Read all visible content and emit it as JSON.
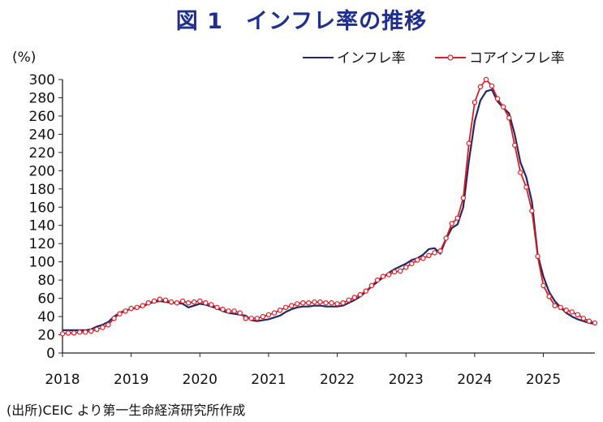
{
  "chart_data": {
    "type": "line",
    "title": "図 1　インフレ率の推移",
    "ylabel": "(%)",
    "source": "(出所)CEIC より第一生命経済研究所作成",
    "ylim": [
      0,
      300
    ],
    "xlim": [
      2018.0,
      2025.75
    ],
    "yticks": [
      0,
      20,
      40,
      60,
      80,
      100,
      120,
      140,
      160,
      180,
      200,
      220,
      240,
      260,
      280,
      300
    ],
    "xticks": [
      "2018",
      "2019",
      "2020",
      "2021",
      "2022",
      "2023",
      "2024",
      "2025"
    ],
    "legend_position": "top-right",
    "grid": false,
    "series": [
      {
        "name": "インフレ率",
        "color": "#1f2a66",
        "marker": "none",
        "start": "2018-01",
        "values": [
          25,
          25,
          25,
          25,
          25,
          26,
          29,
          31,
          34,
          40,
          44,
          47,
          48,
          50,
          51,
          54,
          56,
          57,
          56,
          55,
          55,
          54,
          50,
          52,
          54,
          53,
          51,
          49,
          46,
          44,
          43,
          42,
          41,
          36,
          35,
          36,
          37,
          39,
          41,
          45,
          48,
          50,
          51,
          51,
          52,
          52,
          51,
          51,
          51,
          52,
          55,
          58,
          62,
          67,
          73,
          78,
          83,
          88,
          92,
          95,
          98,
          102,
          104,
          108,
          114,
          115,
          109,
          125,
          137,
          141,
          160,
          211,
          254,
          277,
          287,
          289,
          276,
          269,
          263,
          240,
          209,
          193,
          166,
          108,
          84,
          67,
          57,
          50,
          44,
          40,
          37,
          35,
          33,
          32
        ]
      },
      {
        "name": "コアインフレ率",
        "color": "#e01b24",
        "marker": "circle",
        "start": "2018-01",
        "values": [
          21,
          22,
          22,
          23,
          23,
          24,
          26,
          28,
          31,
          38,
          43,
          46,
          49,
          50,
          52,
          55,
          57,
          59,
          58,
          56,
          55,
          57,
          55,
          56,
          57,
          55,
          53,
          50,
          48,
          46,
          46,
          44,
          38,
          38,
          38,
          40,
          42,
          44,
          47,
          50,
          52,
          54,
          55,
          55,
          56,
          56,
          55,
          55,
          54,
          55,
          58,
          61,
          64,
          68,
          74,
          80,
          84,
          86,
          89,
          90,
          94,
          98,
          102,
          104,
          107,
          110,
          112,
          126,
          142,
          148,
          170,
          230,
          275,
          292,
          300,
          293,
          279,
          270,
          258,
          228,
          198,
          182,
          156,
          106,
          74,
          62,
          52,
          50,
          47,
          45,
          42,
          38,
          35,
          33
        ]
      }
    ]
  }
}
